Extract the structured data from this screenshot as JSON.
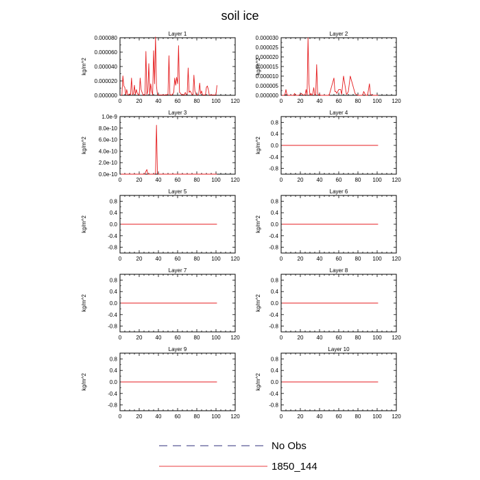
{
  "title": "soil ice",
  "chart_data": [
    {
      "type": "line",
      "title": "Layer 1",
      "xlabel": "",
      "ylabel": "kg/m^2",
      "xlim": [
        0,
        120
      ],
      "ylim": [
        0,
        8e-05
      ],
      "xticks": [
        0,
        20,
        40,
        60,
        80,
        100,
        120
      ],
      "yticks": [
        0,
        2e-05,
        4e-05,
        6e-05,
        8e-05
      ],
      "yticklabels": [
        "0.000000",
        "0.000020",
        "0.000040",
        "0.000060",
        "0.000080"
      ],
      "series": [
        {
          "name": "1850_144",
          "x": [
            1,
            2,
            3,
            4,
            5,
            6,
            7,
            8,
            9,
            10,
            11,
            12,
            13,
            14,
            15,
            16,
            17,
            18,
            19,
            20,
            21,
            22,
            23,
            24,
            25,
            26,
            27,
            28,
            29,
            30,
            31,
            32,
            33,
            34,
            35,
            36,
            37,
            38,
            39,
            40,
            41,
            42,
            43,
            44,
            45,
            46,
            47,
            48,
            49,
            50,
            51,
            52,
            53,
            54,
            55,
            56,
            57,
            58,
            59,
            60,
            61,
            62,
            63,
            64,
            65,
            66,
            67,
            68,
            69,
            70,
            71,
            72,
            73,
            74,
            75,
            76,
            77,
            78,
            79,
            80,
            81,
            82,
            83,
            84,
            85,
            86,
            87,
            88,
            89,
            90,
            91,
            92,
            93,
            94,
            95,
            96,
            97,
            98,
            99,
            100,
            101
          ],
          "y": [
            1e-07,
            5e-07,
            2.7e-05,
            1.3e-05,
            1.1e-05,
            5e-07,
            8e-06,
            1e-06,
            5e-07,
            2e-06,
            1e-06,
            2.4e-05,
            1e-06,
            2e-06,
            1.4e-05,
            1e-06,
            8e-06,
            3e-06,
            1e-06,
            5e-07,
            2.4e-05,
            8e-06,
            4e-06,
            5e-07,
            5e-07,
            5e-07,
            6.1e-05,
            1e-06,
            6e-06,
            4.4e-05,
            1e-06,
            1.6e-05,
            6e-06,
            5e-07,
            6.2e-05,
            1.6e-05,
            8.1e-05,
            1.3e-05,
            1e-06,
            5e-07,
            5e-07,
            5e-07,
            5e-07,
            5e-07,
            5e-07,
            5e-07,
            5e-07,
            1e-06,
            5e-07,
            2e-06,
            5.5e-05,
            1e-06,
            5e-07,
            5e-07,
            2e-06,
            4e-06,
            2.4e-05,
            1.4e-05,
            2.5e-05,
            1.6e-05,
            6.9e-05,
            4e-06,
            3e-06,
            1e-06,
            5e-07,
            1e-06,
            5e-07,
            4e-06,
            1e-06,
            2e-06,
            3.8e-05,
            4e-06,
            6e-06,
            4e-06,
            1e-06,
            1e-06,
            2.8e-05,
            6e-06,
            2e-06,
            5e-07,
            5e-07,
            2e-06,
            1.7e-05,
            2e-06,
            6e-06,
            5e-07,
            5e-07,
            5e-07,
            5e-07,
            1.1e-05,
            1.3e-05,
            8e-06,
            5e-07,
            5e-07,
            5e-07,
            5e-07,
            5e-07,
            5e-07,
            5e-07,
            1e-06,
            1.4e-05
          ]
        }
      ]
    },
    {
      "type": "line",
      "title": "Layer 2",
      "xlabel": "",
      "ylabel": "kg/m^2",
      "xlim": [
        0,
        120
      ],
      "ylim": [
        0,
        3e-05
      ],
      "xticks": [
        0,
        20,
        40,
        60,
        80,
        100,
        120
      ],
      "yticks": [
        0,
        5e-06,
        1e-05,
        1.5e-05,
        2e-05,
        2.5e-05,
        3e-05
      ],
      "yticklabels": [
        "0.000000",
        "0.000005",
        "0.000010",
        "0.000015",
        "0.000020",
        "0.000025",
        "0.000030"
      ],
      "series": [
        {
          "name": "1850_144",
          "x": [
            1,
            3,
            4,
            5,
            6,
            7,
            13,
            14,
            15,
            16,
            17,
            18,
            20,
            21,
            22,
            24,
            25,
            26,
            27,
            28,
            29,
            30,
            31,
            32,
            33,
            34,
            35,
            36,
            37,
            38,
            39,
            40,
            41,
            45,
            50,
            55,
            56,
            57,
            58,
            60,
            62,
            63,
            65,
            68,
            69,
            70,
            72,
            77,
            78,
            80,
            85,
            86,
            88,
            90,
            92,
            93,
            95,
            100,
            101
          ],
          "y": [
            0,
            0,
            5e-07,
            3e-06,
            5e-07,
            0,
            0,
            1e-06,
            0,
            0,
            0,
            0,
            5e-07,
            1e-06,
            5e-07,
            0,
            5e-07,
            3e-06,
            0,
            3e-05,
            6e-06,
            0,
            1e-06,
            0,
            1e-06,
            4e-06,
            0,
            5e-07,
            1.6e-05,
            1e-06,
            0,
            5e-07,
            0,
            0,
            0,
            9e-06,
            2e-06,
            2e-06,
            1e-06,
            3e-06,
            3e-06,
            5e-07,
            1e-05,
            5e-07,
            1e-06,
            2e-06,
            1e-05,
            1e-06,
            5e-07,
            0,
            0,
            2e-06,
            0,
            0,
            6e-06,
            5e-07,
            0,
            0,
            0
          ]
        }
      ]
    },
    {
      "type": "line",
      "title": "Layer 3",
      "xlabel": "",
      "ylabel": "kg/m^2",
      "xlim": [
        0,
        120
      ],
      "ylim": [
        0,
        1e-09
      ],
      "xticks": [
        0,
        20,
        40,
        60,
        80,
        100,
        120
      ],
      "yticks": [
        0,
        2e-10,
        4e-10,
        6e-10,
        8e-10,
        1e-09
      ],
      "yticklabels": [
        "0.0e-10",
        "2.0e-10",
        "4.0e-10",
        "6.0e-10",
        "8.0e-10",
        "1.0e-9"
      ],
      "series": [
        {
          "name": "1850_144",
          "x": [
            1,
            26,
            27,
            28,
            29,
            36,
            37,
            38,
            39,
            40,
            41,
            101
          ],
          "y": [
            0,
            0,
            5e-11,
            8e-11,
            0,
            0,
            1e-11,
            8.5e-10,
            1e-11,
            0,
            0,
            0
          ]
        }
      ]
    },
    {
      "type": "line",
      "title": "Layer 4",
      "xlabel": "",
      "ylabel": "kg/m^2",
      "xlim": [
        0,
        120
      ],
      "ylim": [
        -1,
        1
      ],
      "xticks": [
        0,
        20,
        40,
        60,
        80,
        100,
        120
      ],
      "yticks": [
        -0.8,
        -0.4,
        0,
        0.4,
        0.8
      ],
      "yticklabels": [
        "-0.8",
        "-0.4",
        "0.0",
        "0.4",
        "0.8"
      ],
      "series": [
        {
          "name": "1850_144",
          "x": [
            1,
            101
          ],
          "y": [
            0,
            0
          ]
        }
      ]
    },
    {
      "type": "line",
      "title": "Layer 5",
      "xlabel": "",
      "ylabel": "kg/m^2",
      "xlim": [
        0,
        120
      ],
      "ylim": [
        -1,
        1
      ],
      "xticks": [
        0,
        20,
        40,
        60,
        80,
        100,
        120
      ],
      "yticks": [
        -0.8,
        -0.4,
        0,
        0.4,
        0.8
      ],
      "yticklabels": [
        "-0.8",
        "-0.4",
        "0.0",
        "0.4",
        "0.8"
      ],
      "series": [
        {
          "name": "1850_144",
          "x": [
            1,
            101
          ],
          "y": [
            0,
            0
          ]
        }
      ]
    },
    {
      "type": "line",
      "title": "Layer 6",
      "xlabel": "",
      "ylabel": "kg/m^2",
      "xlim": [
        0,
        120
      ],
      "ylim": [
        -1,
        1
      ],
      "xticks": [
        0,
        20,
        40,
        60,
        80,
        100,
        120
      ],
      "yticks": [
        -0.8,
        -0.4,
        0,
        0.4,
        0.8
      ],
      "yticklabels": [
        "-0.8",
        "-0.4",
        "0.0",
        "0.4",
        "0.8"
      ],
      "series": [
        {
          "name": "1850_144",
          "x": [
            1,
            101
          ],
          "y": [
            0,
            0
          ]
        }
      ]
    },
    {
      "type": "line",
      "title": "Layer 7",
      "xlabel": "",
      "ylabel": "kg/m^2",
      "xlim": [
        0,
        120
      ],
      "ylim": [
        -1,
        1
      ],
      "xticks": [
        0,
        20,
        40,
        60,
        80,
        100,
        120
      ],
      "yticks": [
        -0.8,
        -0.4,
        0,
        0.4,
        0.8
      ],
      "yticklabels": [
        "-0.8",
        "-0.4",
        "0.0",
        "0.4",
        "0.8"
      ],
      "series": [
        {
          "name": "1850_144",
          "x": [
            1,
            101
          ],
          "y": [
            0,
            0
          ]
        }
      ]
    },
    {
      "type": "line",
      "title": "Layer 8",
      "xlabel": "",
      "ylabel": "kg/m^2",
      "xlim": [
        0,
        120
      ],
      "ylim": [
        -1,
        1
      ],
      "xticks": [
        0,
        20,
        40,
        60,
        80,
        100,
        120
      ],
      "yticks": [
        -0.8,
        -0.4,
        0,
        0.4,
        0.8
      ],
      "yticklabels": [
        "-0.8",
        "-0.4",
        "0.0",
        "0.4",
        "0.8"
      ],
      "series": [
        {
          "name": "1850_144",
          "x": [
            1,
            101
          ],
          "y": [
            0,
            0
          ]
        }
      ]
    },
    {
      "type": "line",
      "title": "Layer 9",
      "xlabel": "",
      "ylabel": "kg/m^2",
      "xlim": [
        0,
        120
      ],
      "ylim": [
        -1,
        1
      ],
      "xticks": [
        0,
        20,
        40,
        60,
        80,
        100,
        120
      ],
      "yticks": [
        -0.8,
        -0.4,
        0,
        0.4,
        0.8
      ],
      "yticklabels": [
        "-0.8",
        "-0.4",
        "0.0",
        "0.4",
        "0.8"
      ],
      "series": [
        {
          "name": "1850_144",
          "x": [
            1,
            101
          ],
          "y": [
            0,
            0
          ]
        }
      ]
    },
    {
      "type": "line",
      "title": "Layer 10",
      "xlabel": "",
      "ylabel": "kg/m^2",
      "xlim": [
        0,
        120
      ],
      "ylim": [
        -1,
        1
      ],
      "xticks": [
        0,
        20,
        40,
        60,
        80,
        100,
        120
      ],
      "yticks": [
        -0.8,
        -0.4,
        0,
        0.4,
        0.8
      ],
      "yticklabels": [
        "-0.8",
        "-0.4",
        "0.0",
        "0.4",
        "0.8"
      ],
      "series": [
        {
          "name": "1850_144",
          "x": [
            1,
            101
          ],
          "y": [
            0,
            0
          ]
        }
      ]
    }
  ],
  "legend": [
    {
      "label": "No Obs",
      "style": "dashed",
      "color": "#2c2c7a"
    },
    {
      "label": "1850_144",
      "style": "solid",
      "color": "#e8383d"
    }
  ],
  "colors": {
    "series": "#e41a1c",
    "axis": "#000000"
  }
}
